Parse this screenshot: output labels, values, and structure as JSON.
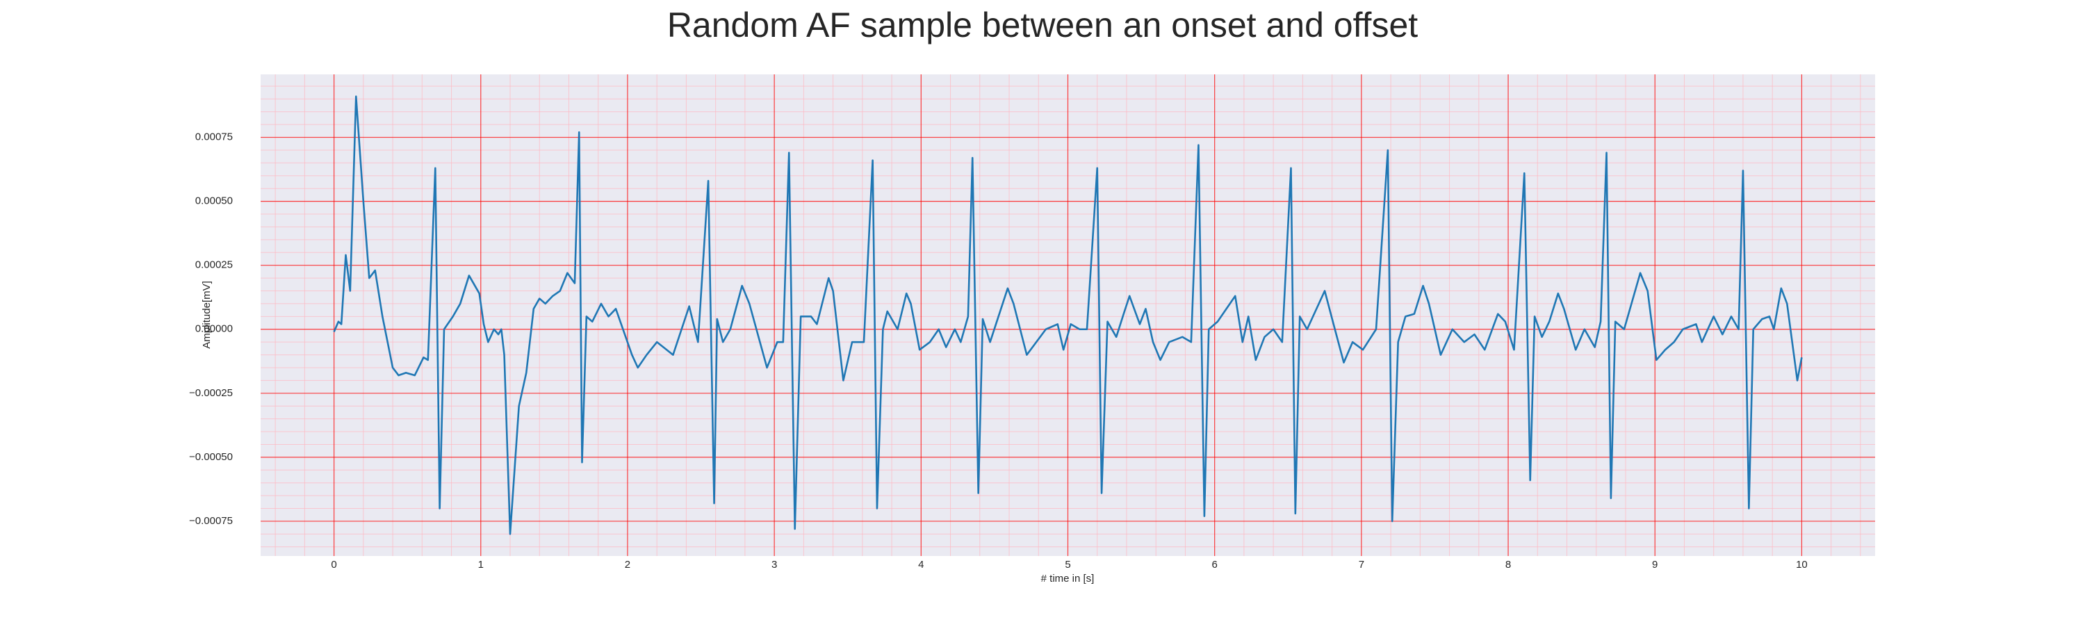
{
  "chart_data": {
    "type": "line",
    "title": "Random AF sample between an onset and offset",
    "xlabel": "# time in [s]",
    "ylabel": "Amplitude[mV]",
    "color": "#1f77b4",
    "grid": true,
    "minor_grid": true,
    "grid_color": "#ff0000",
    "minor_grid_color": "#ffb6c1",
    "background": "#eaeaf2",
    "xlim": [
      -0.5,
      10.5
    ],
    "ylim": [
      -0.000886,
      0.000996
    ],
    "xticks": [
      0,
      1,
      2,
      3,
      4,
      5,
      6,
      7,
      8,
      9,
      10
    ],
    "yticks": [
      {
        "value": -0.00075,
        "label": "−0.00075"
      },
      {
        "value": -0.0005,
        "label": "−0.00050"
      },
      {
        "value": -0.00025,
        "label": "−0.00025"
      },
      {
        "value": 0,
        "label": "0.00000"
      },
      {
        "value": 0.00025,
        "label": "0.00025"
      },
      {
        "value": 0.0005,
        "label": "0.00050"
      },
      {
        "value": 0.00075,
        "label": "0.00075"
      }
    ],
    "x": [
      0.0,
      0.03,
      0.05,
      0.08,
      0.11,
      0.15,
      0.2,
      0.24,
      0.28,
      0.33,
      0.4,
      0.44,
      0.49,
      0.55,
      0.61,
      0.64,
      0.69,
      0.72,
      0.75,
      0.81,
      0.86,
      0.92,
      0.99,
      1.02,
      1.05,
      1.09,
      1.12,
      1.14,
      1.16,
      1.2,
      1.26,
      1.31,
      1.36,
      1.4,
      1.44,
      1.49,
      1.54,
      1.59,
      1.64,
      1.67,
      1.69,
      1.72,
      1.76,
      1.82,
      1.87,
      1.92,
      2.03,
      2.07,
      2.13,
      2.2,
      2.31,
      2.42,
      2.48,
      2.55,
      2.59,
      2.61,
      2.65,
      2.7,
      2.78,
      2.83,
      2.95,
      3.02,
      3.06,
      3.1,
      3.14,
      3.18,
      3.25,
      3.29,
      3.37,
      3.4,
      3.47,
      3.53,
      3.61,
      3.67,
      3.7,
      3.74,
      3.77,
      3.84,
      3.9,
      3.93,
      3.99,
      4.06,
      4.12,
      4.17,
      4.23,
      4.27,
      4.32,
      4.35,
      4.39,
      4.42,
      4.47,
      4.59,
      4.63,
      4.72,
      4.85,
      4.93,
      4.97,
      5.02,
      5.08,
      5.13,
      5.2,
      5.23,
      5.27,
      5.33,
      5.38,
      5.42,
      5.49,
      5.53,
      5.58,
      5.63,
      5.69,
      5.78,
      5.84,
      5.89,
      5.93,
      5.96,
      6.02,
      6.14,
      6.19,
      6.23,
      6.28,
      6.34,
      6.4,
      6.46,
      6.52,
      6.55,
      6.58,
      6.63,
      6.75,
      6.81,
      6.88,
      6.94,
      7.01,
      7.1,
      7.18,
      7.21,
      7.25,
      7.3,
      7.36,
      7.42,
      7.46,
      7.54,
      7.62,
      7.7,
      7.77,
      7.84,
      7.93,
      7.98,
      8.04,
      8.11,
      8.15,
      8.18,
      8.23,
      8.28,
      8.34,
      8.38,
      8.46,
      8.52,
      8.59,
      8.63,
      8.67,
      8.7,
      8.73,
      8.79,
      8.9,
      8.95,
      9.01,
      9.07,
      9.13,
      9.19,
      9.28,
      9.32,
      9.4,
      9.46,
      9.52,
      9.57,
      9.6,
      9.64,
      9.67,
      9.73,
      9.78,
      9.81,
      9.86,
      9.9,
      9.97,
      10.0
    ],
    "values": [
      -1e-05,
      3e-05,
      2e-05,
      0.00029,
      0.00015,
      0.00091,
      0.0005,
      0.0002,
      0.00023,
      5e-05,
      -0.00015,
      -0.00018,
      -0.00017,
      -0.00018,
      -0.00011,
      -0.00012,
      0.00063,
      -0.0007,
      0,
      5e-05,
      0.0001,
      0.00021,
      0.00014,
      2e-05,
      -5e-05,
      0,
      -2e-05,
      0,
      -0.0001,
      -0.0008,
      -0.0003,
      -0.00017,
      8e-05,
      0.00012,
      0.0001,
      0.00013,
      0.00015,
      0.00022,
      0.00018,
      0.00077,
      -0.00052,
      5e-05,
      3e-05,
      0.0001,
      5e-05,
      8e-05,
      -0.0001,
      -0.00015,
      -0.0001,
      -5e-05,
      -0.0001,
      9e-05,
      -5e-05,
      0.00058,
      -0.00068,
      4e-05,
      -5e-05,
      0,
      0.00017,
      0.0001,
      -0.00015,
      -5e-05,
      -5e-05,
      0.00069,
      -0.00078,
      5e-05,
      5e-05,
      2e-05,
      0.0002,
      0.00015,
      -0.0002,
      -5e-05,
      -5e-05,
      0.00066,
      -0.0007,
      0,
      7e-05,
      0,
      0.00014,
      0.0001,
      -8e-05,
      -5e-05,
      0,
      -7e-05,
      0,
      -5e-05,
      5e-05,
      0.00067,
      -0.00064,
      4e-05,
      -5e-05,
      0.00016,
      0.0001,
      -0.0001,
      0,
      2e-05,
      -8e-05,
      2e-05,
      0,
      0,
      0.00063,
      -0.00064,
      3e-05,
      -3e-05,
      6e-05,
      0.00013,
      2e-05,
      8e-05,
      -5e-05,
      -0.00012,
      -5e-05,
      -3e-05,
      -5e-05,
      0.00072,
      -0.00073,
      0,
      3e-05,
      0.00013,
      -5e-05,
      5e-05,
      -0.00012,
      -3e-05,
      0,
      -5e-05,
      0.00063,
      -0.00072,
      5e-05,
      0,
      0.00015,
      2e-05,
      -0.00013,
      -5e-05,
      -8e-05,
      0,
      0.0007,
      -0.00075,
      -5e-05,
      5e-05,
      6e-05,
      0.00017,
      0.0001,
      -0.0001,
      0,
      -5e-05,
      -2e-05,
      -8e-05,
      6e-05,
      3e-05,
      -8e-05,
      0.00061,
      -0.00059,
      5e-05,
      -3e-05,
      3e-05,
      0.00014,
      8e-05,
      -8e-05,
      0,
      -7e-05,
      3e-05,
      0.00069,
      -0.00066,
      3e-05,
      0,
      0.00022,
      0.00015,
      -0.00012,
      -8e-05,
      -5e-05,
      0,
      2e-05,
      -5e-05,
      5e-05,
      -2e-05,
      5e-05,
      0,
      0.00062,
      -0.0007,
      0,
      4e-05,
      5e-05,
      0,
      0.00016,
      0.0001,
      -0.0002,
      -0.00011
    ]
  }
}
